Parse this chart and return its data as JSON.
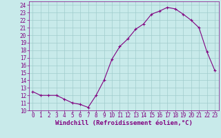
{
  "x": [
    0,
    1,
    2,
    3,
    4,
    5,
    6,
    7,
    8,
    9,
    10,
    11,
    12,
    13,
    14,
    15,
    16,
    17,
    18,
    19,
    20,
    21,
    22,
    23
  ],
  "y": [
    12.5,
    12.0,
    12.0,
    12.0,
    11.5,
    11.0,
    10.8,
    10.4,
    12.0,
    14.0,
    16.8,
    18.5,
    19.5,
    20.8,
    21.5,
    22.8,
    23.2,
    23.7,
    23.5,
    22.8,
    22.0,
    21.0,
    17.8,
    15.3
  ],
  "line_color": "#800080",
  "marker": "+",
  "marker_size": 3,
  "bg_color": "#c8eaea",
  "grid_color": "#a0cccc",
  "xlabel": "Windchill (Refroidissement éolien,°C)",
  "xlim": [
    -0.5,
    23.5
  ],
  "ylim": [
    10,
    24.5
  ],
  "yticks": [
    10,
    11,
    12,
    13,
    14,
    15,
    16,
    17,
    18,
    19,
    20,
    21,
    22,
    23,
    24
  ],
  "xticks": [
    0,
    1,
    2,
    3,
    4,
    5,
    6,
    7,
    8,
    9,
    10,
    11,
    12,
    13,
    14,
    15,
    16,
    17,
    18,
    19,
    20,
    21,
    22,
    23
  ],
  "tick_color": "#800080",
  "label_color": "#800080",
  "axis_color": "#800080",
  "font_size_xlabel": 6.5,
  "font_size_ticks": 5.5
}
